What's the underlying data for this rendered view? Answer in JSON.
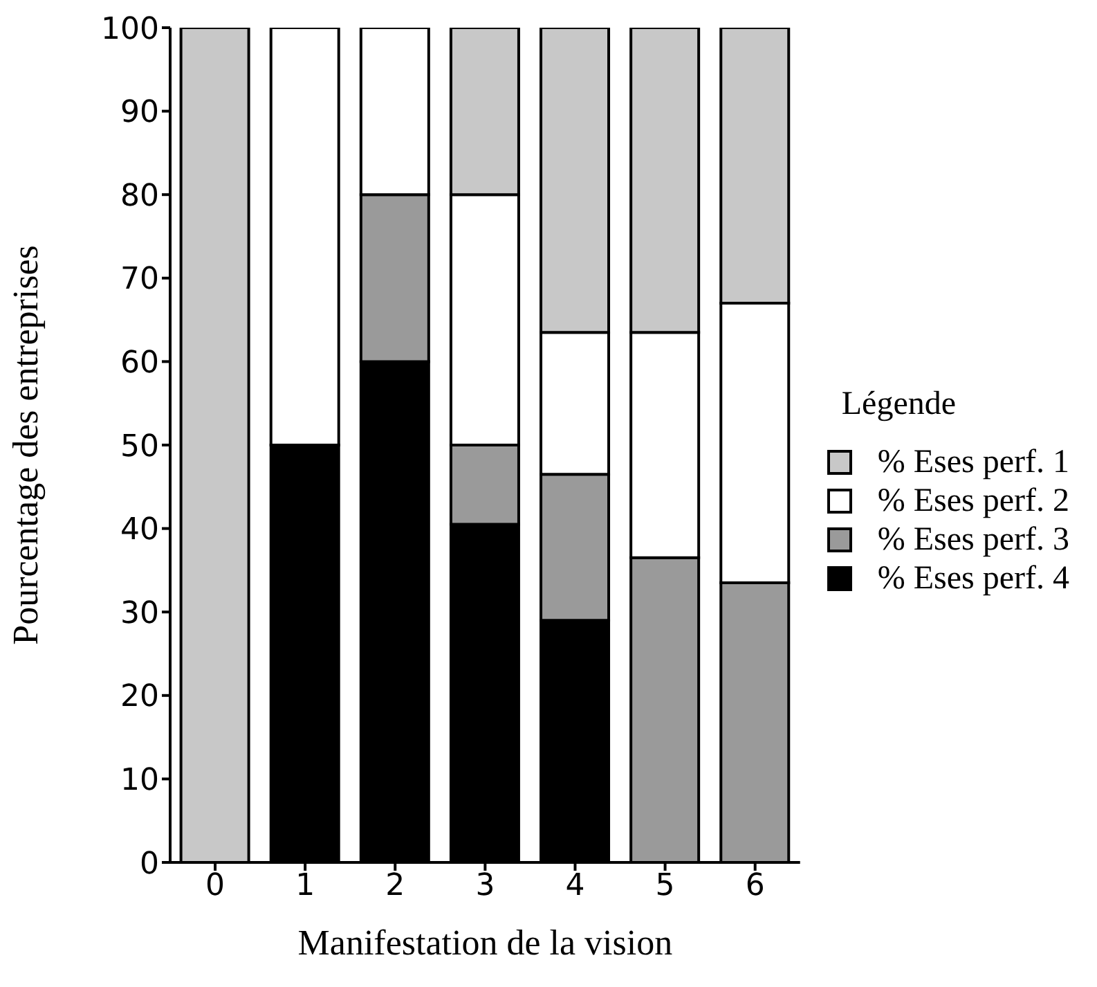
{
  "chart_data": {
    "type": "bar",
    "stacked": true,
    "xlabel": "Manifestation de la vision",
    "ylabel": "Pourcentage des entreprises",
    "legend_title": "Légende",
    "categories": [
      "0",
      "1",
      "2",
      "3",
      "4",
      "5",
      "6"
    ],
    "series": [
      {
        "name": "% Eses perf. 4",
        "color": "#000000",
        "values": [
          0,
          50,
          60,
          40.5,
          29,
          0,
          0
        ]
      },
      {
        "name": "% Eses perf. 3",
        "color": "#9a9a9a",
        "values": [
          0,
          0,
          20,
          9.5,
          17.5,
          36.5,
          33.5
        ]
      },
      {
        "name": "% Eses perf. 2",
        "color": "#ffffff",
        "values": [
          0,
          50,
          20,
          30,
          17,
          27,
          33.5
        ]
      },
      {
        "name": "% Eses perf. 1",
        "color": "#c8c8c8",
        "values": [
          100,
          0,
          0,
          20,
          36.5,
          36.5,
          33
        ]
      }
    ],
    "ylim": [
      0,
      100
    ],
    "yticks": [
      0,
      10,
      20,
      30,
      40,
      50,
      60,
      70,
      80,
      90,
      100
    ],
    "legend": "right"
  }
}
